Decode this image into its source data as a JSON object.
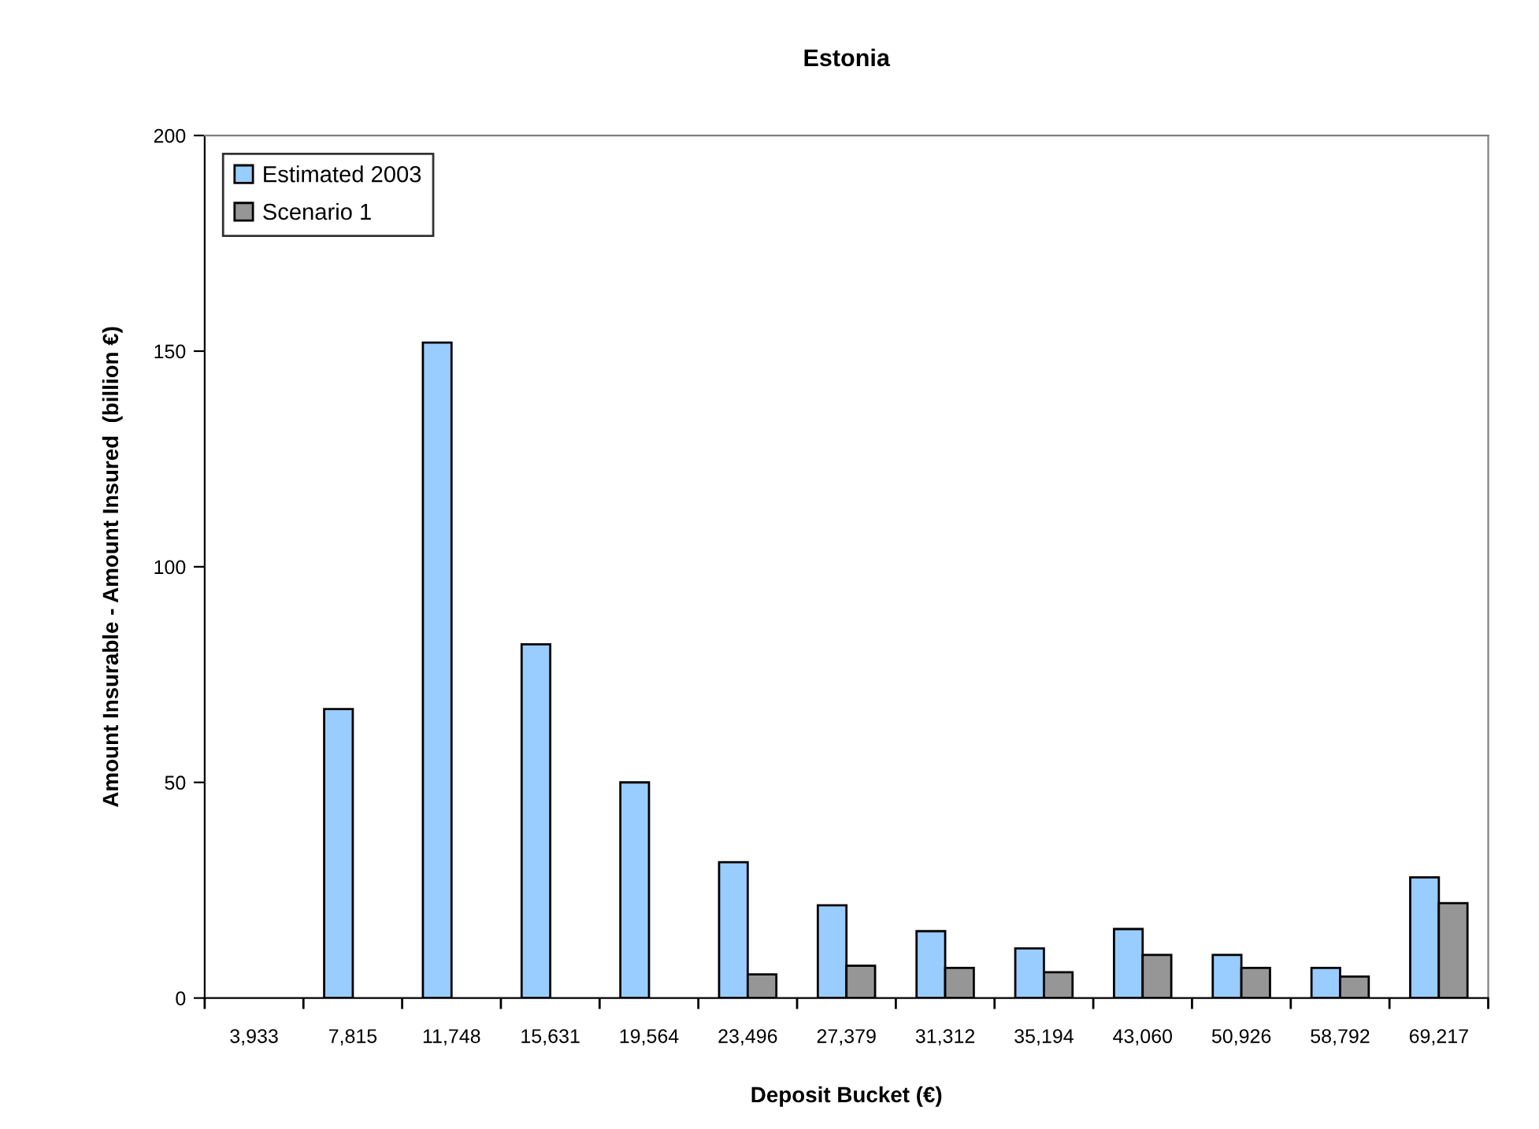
{
  "chart_data": {
    "type": "bar",
    "title": "Estonia",
    "xlabel": "Deposit Bucket (€)",
    "ylabel": "Amount Insurable - Amount Insured  (billion €)",
    "categories": [
      "3,933",
      "7,815",
      "11,748",
      "15,631",
      "19,564",
      "23,496",
      "27,379",
      "31,312",
      "35,194",
      "43,060",
      "50,926",
      "58,792",
      "69,217"
    ],
    "series": [
      {
        "name": "Estimated 2003",
        "color": "#99ccff",
        "values": [
          null,
          67,
          152,
          82,
          50,
          31.5,
          21.5,
          15.5,
          11.5,
          16,
          10,
          7,
          28
        ]
      },
      {
        "name": "Scenario 1",
        "color": "#969696",
        "values": [
          null,
          null,
          null,
          null,
          null,
          5.5,
          7.5,
          7,
          6,
          10,
          7,
          5,
          22
        ]
      }
    ],
    "ylim": [
      0,
      200
    ],
    "yticks": [
      0,
      50,
      100,
      150,
      200
    ],
    "grid": false,
    "legend": "top left"
  }
}
